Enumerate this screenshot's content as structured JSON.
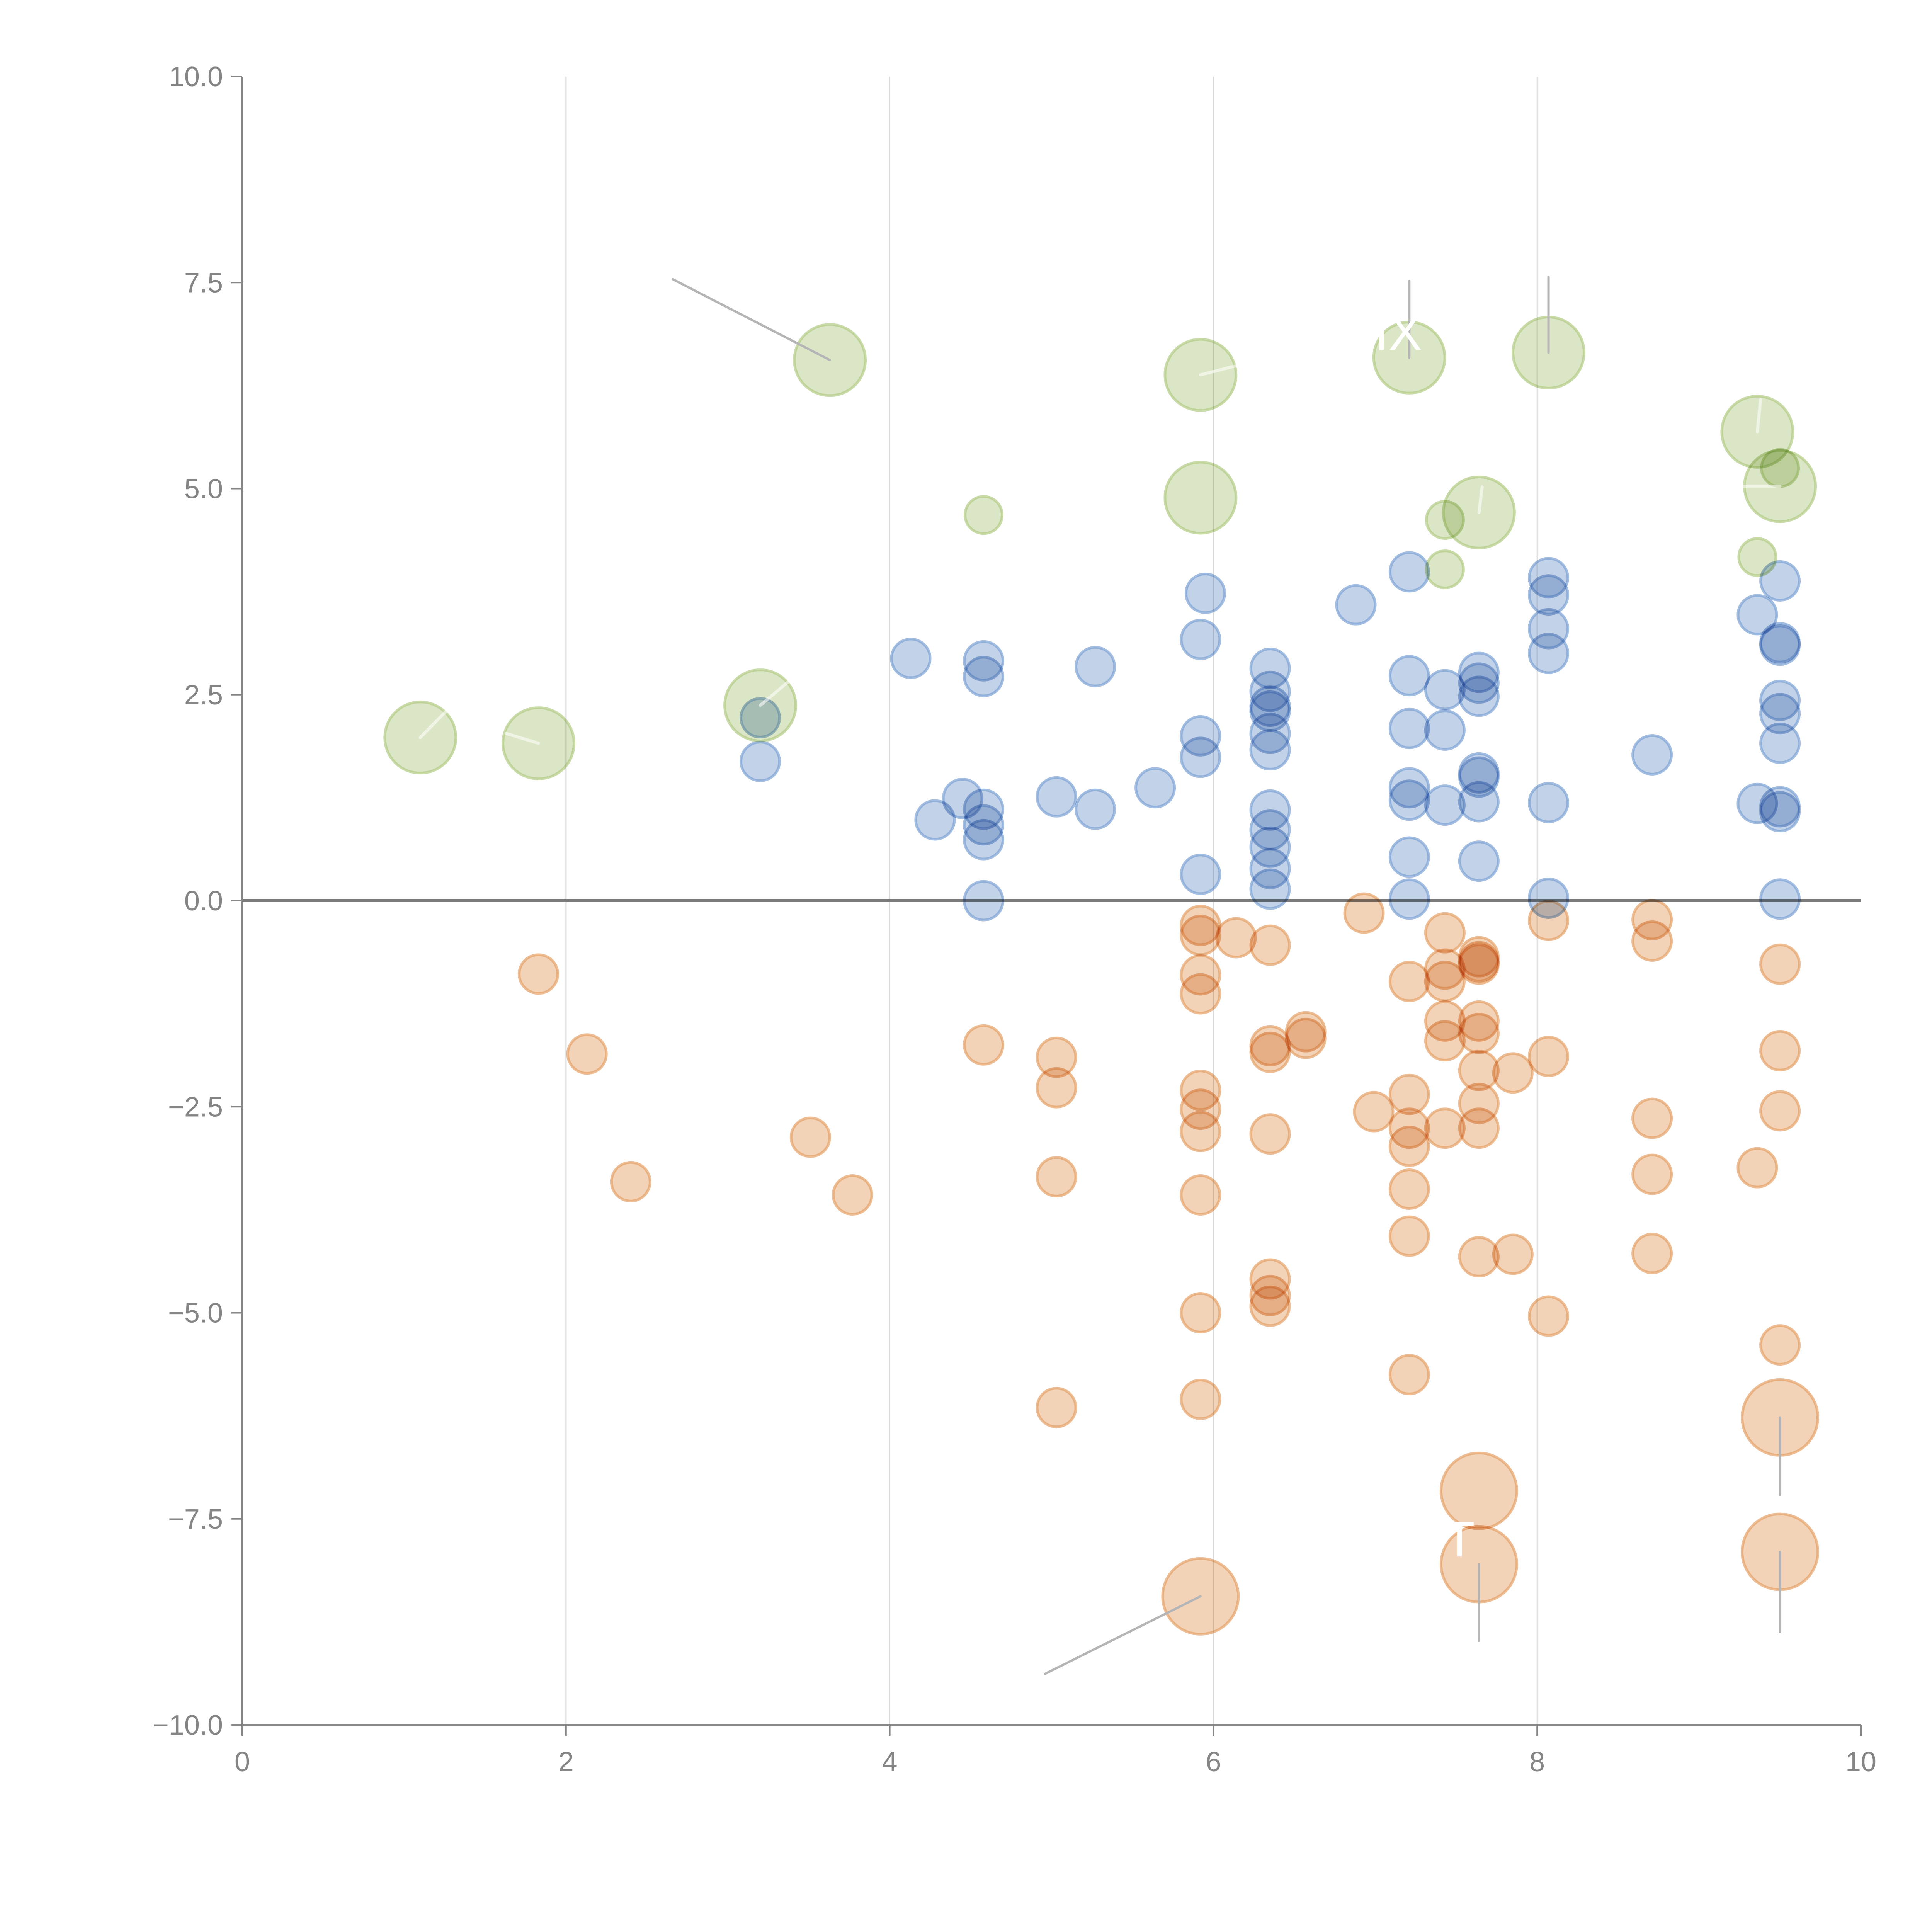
{
  "chart_data": {
    "type": "scatter",
    "title": "",
    "xlabel": "",
    "ylabel": "",
    "xlim": [
      0,
      10
    ],
    "ylim": [
      -10,
      10
    ],
    "grid": "vertical-lines-at-x-ticks",
    "legend": "none",
    "x_ticks": [
      "0",
      "2",
      "4",
      "6",
      "8",
      "10"
    ],
    "x_tick_values": [
      0,
      2,
      4,
      6,
      8,
      10
    ],
    "y_ticks": [
      "−10.0",
      "−7.5",
      "−5.0",
      "−2.5",
      "0.0",
      "2.5",
      "5.0",
      "7.5",
      "10.0"
    ],
    "y_tick_values": [
      -10,
      -7.5,
      -5,
      -2.5,
      0,
      2.5,
      5,
      7.5,
      10
    ],
    "reference_line_y": 0,
    "series": [
      {
        "name": "green",
        "color_fill": "#d5e2bc",
        "color_stroke": "#b3cc86",
        "points": [
          {
            "x": 1.1,
            "y": 1.98,
            "size": "large"
          },
          {
            "x": 1.83,
            "y": 1.91,
            "size": "large"
          },
          {
            "x": 3.2,
            "y": 2.37,
            "size": "large"
          },
          {
            "x": 3.63,
            "y": 6.56,
            "size": "large"
          },
          {
            "x": 5.92,
            "y": 6.38,
            "size": "large"
          },
          {
            "x": 5.92,
            "y": 4.89,
            "size": "large"
          },
          {
            "x": 4.58,
            "y": 4.68,
            "size": "small"
          },
          {
            "x": 7.21,
            "y": 6.59,
            "size": "large"
          },
          {
            "x": 8.07,
            "y": 6.65,
            "size": "large"
          },
          {
            "x": 7.64,
            "y": 4.71,
            "size": "large"
          },
          {
            "x": 7.43,
            "y": 4.62,
            "size": "small"
          },
          {
            "x": 7.43,
            "y": 4.02,
            "size": "small"
          },
          {
            "x": 9.36,
            "y": 5.69,
            "size": "large"
          },
          {
            "x": 9.5,
            "y": 5.03,
            "size": "large"
          },
          {
            "x": 9.5,
            "y": 5.25,
            "size": "small"
          },
          {
            "x": 9.36,
            "y": 4.17,
            "size": "small"
          }
        ]
      },
      {
        "name": "blue",
        "color_fill": "#b7cae4",
        "color_stroke": "#7ea2d4",
        "points": [
          {
            "x": 3.2,
            "y": 2.22
          },
          {
            "x": 3.2,
            "y": 1.69
          },
          {
            "x": 4.13,
            "y": 2.94
          },
          {
            "x": 4.28,
            "y": 0.98
          },
          {
            "x": 4.45,
            "y": 1.24
          },
          {
            "x": 4.58,
            "y": 2.91
          },
          {
            "x": 4.58,
            "y": 2.72
          },
          {
            "x": 4.58,
            "y": 1.11
          },
          {
            "x": 4.58,
            "y": 0.92
          },
          {
            "x": 4.58,
            "y": 0.74
          },
          {
            "x": 4.58,
            "y": 0.0
          },
          {
            "x": 5.03,
            "y": 1.26
          },
          {
            "x": 5.27,
            "y": 1.11
          },
          {
            "x": 5.27,
            "y": 2.84
          },
          {
            "x": 5.64,
            "y": 1.37
          },
          {
            "x": 5.92,
            "y": 3.17
          },
          {
            "x": 5.95,
            "y": 3.73
          },
          {
            "x": 5.92,
            "y": 2.0
          },
          {
            "x": 5.92,
            "y": 1.74
          },
          {
            "x": 5.92,
            "y": 0.32
          },
          {
            "x": 6.35,
            "y": 2.82
          },
          {
            "x": 6.35,
            "y": 2.54
          },
          {
            "x": 6.35,
            "y": 2.36
          },
          {
            "x": 6.35,
            "y": 2.3
          },
          {
            "x": 6.35,
            "y": 2.03
          },
          {
            "x": 6.35,
            "y": 1.83
          },
          {
            "x": 6.35,
            "y": 1.1
          },
          {
            "x": 6.35,
            "y": 0.86
          },
          {
            "x": 6.35,
            "y": 0.65
          },
          {
            "x": 6.35,
            "y": 0.39
          },
          {
            "x": 6.35,
            "y": 0.14
          },
          {
            "x": 6.88,
            "y": 3.59
          },
          {
            "x": 7.21,
            "y": 3.99
          },
          {
            "x": 7.21,
            "y": 2.73
          },
          {
            "x": 7.21,
            "y": 2.09
          },
          {
            "x": 7.21,
            "y": 1.37
          },
          {
            "x": 7.21,
            "y": 1.22
          },
          {
            "x": 7.21,
            "y": 0.53
          },
          {
            "x": 7.21,
            "y": 0.02
          },
          {
            "x": 7.43,
            "y": 2.56
          },
          {
            "x": 7.43,
            "y": 2.07
          },
          {
            "x": 7.43,
            "y": 1.16
          },
          {
            "x": 7.64,
            "y": 2.77
          },
          {
            "x": 7.64,
            "y": 2.64
          },
          {
            "x": 7.64,
            "y": 2.48
          },
          {
            "x": 7.64,
            "y": 1.55
          },
          {
            "x": 7.64,
            "y": 1.5
          },
          {
            "x": 7.64,
            "y": 1.2
          },
          {
            "x": 7.64,
            "y": 0.48
          },
          {
            "x": 8.07,
            "y": 3.92
          },
          {
            "x": 8.07,
            "y": 3.71
          },
          {
            "x": 8.07,
            "y": 3.3
          },
          {
            "x": 8.07,
            "y": 3.0
          },
          {
            "x": 8.07,
            "y": 1.19
          },
          {
            "x": 8.07,
            "y": 0.03
          },
          {
            "x": 8.71,
            "y": 1.77
          },
          {
            "x": 9.36,
            "y": 3.47
          },
          {
            "x": 9.36,
            "y": 1.18
          },
          {
            "x": 9.5,
            "y": 3.88
          },
          {
            "x": 9.5,
            "y": 3.13
          },
          {
            "x": 9.5,
            "y": 3.1
          },
          {
            "x": 9.5,
            "y": 2.43
          },
          {
            "x": 9.5,
            "y": 2.27
          },
          {
            "x": 9.5,
            "y": 1.91
          },
          {
            "x": 9.5,
            "y": 1.14
          },
          {
            "x": 9.5,
            "y": 1.08
          },
          {
            "x": 9.5,
            "y": 0.02
          }
        ]
      },
      {
        "name": "orange",
        "color_fill": "#f0cbab",
        "color_stroke": "#e5a168",
        "points": [
          {
            "x": 1.83,
            "y": -0.89
          },
          {
            "x": 2.13,
            "y": -1.86
          },
          {
            "x": 2.4,
            "y": -3.41
          },
          {
            "x": 3.51,
            "y": -2.87
          },
          {
            "x": 3.77,
            "y": -3.57
          },
          {
            "x": 4.58,
            "y": -1.75
          },
          {
            "x": 5.03,
            "y": -1.9
          },
          {
            "x": 5.03,
            "y": -2.27
          },
          {
            "x": 5.03,
            "y": -3.35
          },
          {
            "x": 5.03,
            "y": -6.15
          },
          {
            "x": 5.92,
            "y": -0.3
          },
          {
            "x": 5.92,
            "y": -0.42
          },
          {
            "x": 5.92,
            "y": -0.9
          },
          {
            "x": 5.92,
            "y": -1.13
          },
          {
            "x": 5.92,
            "y": -2.3
          },
          {
            "x": 5.92,
            "y": -2.53
          },
          {
            "x": 5.92,
            "y": -2.8
          },
          {
            "x": 5.92,
            "y": -3.57
          },
          {
            "x": 5.92,
            "y": -5.0
          },
          {
            "x": 5.92,
            "y": -6.05
          },
          {
            "x": 6.14,
            "y": -0.45
          },
          {
            "x": 6.35,
            "y": -0.54
          },
          {
            "x": 6.35,
            "y": -1.76
          },
          {
            "x": 6.35,
            "y": -1.84
          },
          {
            "x": 6.35,
            "y": -2.83
          },
          {
            "x": 6.35,
            "y": -4.59
          },
          {
            "x": 6.35,
            "y": -4.79
          },
          {
            "x": 6.35,
            "y": -4.92
          },
          {
            "x": 6.57,
            "y": -1.59
          },
          {
            "x": 6.57,
            "y": -1.67
          },
          {
            "x": 6.93,
            "y": -0.15
          },
          {
            "x": 6.99,
            "y": -2.56
          },
          {
            "x": 7.21,
            "y": -0.98
          },
          {
            "x": 7.21,
            "y": -2.35
          },
          {
            "x": 7.21,
            "y": -2.76
          },
          {
            "x": 7.21,
            "y": -2.98
          },
          {
            "x": 7.21,
            "y": -3.5
          },
          {
            "x": 7.21,
            "y": -4.07
          },
          {
            "x": 7.21,
            "y": -5.75
          },
          {
            "x": 7.43,
            "y": -0.39
          },
          {
            "x": 7.43,
            "y": -0.83
          },
          {
            "x": 7.43,
            "y": -0.98
          },
          {
            "x": 7.43,
            "y": -1.46
          },
          {
            "x": 7.43,
            "y": -1.7
          },
          {
            "x": 7.43,
            "y": -2.76
          },
          {
            "x": 7.64,
            "y": -0.68
          },
          {
            "x": 7.64,
            "y": -0.74
          },
          {
            "x": 7.64,
            "y": -0.77
          },
          {
            "x": 7.64,
            "y": -1.46
          },
          {
            "x": 7.64,
            "y": -1.61
          },
          {
            "x": 7.64,
            "y": -2.06
          },
          {
            "x": 7.64,
            "y": -2.46
          },
          {
            "x": 7.64,
            "y": -2.76
          },
          {
            "x": 7.64,
            "y": -4.32
          },
          {
            "x": 7.85,
            "y": -2.09
          },
          {
            "x": 7.85,
            "y": -4.29
          },
          {
            "x": 8.07,
            "y": -0.24
          },
          {
            "x": 8.07,
            "y": -1.89
          },
          {
            "x": 8.07,
            "y": -5.04
          },
          {
            "x": 8.71,
            "y": -0.23
          },
          {
            "x": 8.71,
            "y": -0.49
          },
          {
            "x": 8.71,
            "y": -2.64
          },
          {
            "x": 8.71,
            "y": -3.32
          },
          {
            "x": 8.71,
            "y": -4.28
          },
          {
            "x": 9.36,
            "y": -3.24
          },
          {
            "x": 9.5,
            "y": -0.77
          },
          {
            "x": 9.5,
            "y": -1.82
          },
          {
            "x": 9.5,
            "y": -2.55
          },
          {
            "x": 9.5,
            "y": -5.39
          },
          {
            "x": 5.92,
            "y": -8.44,
            "size": "large"
          },
          {
            "x": 7.64,
            "y": -7.16,
            "size": "large"
          },
          {
            "x": 7.64,
            "y": -8.05,
            "size": "large"
          },
          {
            "x": 9.5,
            "y": -6.27,
            "size": "large"
          },
          {
            "x": 9.5,
            "y": -7.9,
            "size": "large"
          }
        ]
      }
    ],
    "annotations": [
      {
        "x": 3.63,
        "y": 6.56,
        "text": "",
        "leader_to": [
          2.66,
          7.54
        ]
      },
      {
        "x": 7.21,
        "y": 6.59,
        "text": "IX",
        "leader_to": [
          7.21,
          7.52
        ]
      },
      {
        "x": 8.07,
        "y": 6.65,
        "text": "",
        "leader_to": [
          8.07,
          7.57
        ]
      },
      {
        "x": 7.21,
        "y": 1.9,
        "text": " ",
        "leader_to": null
      },
      {
        "x": 7.64,
        "y": -8.05,
        "text": "T",
        "leader_to": [
          7.64,
          -8.98
        ]
      },
      {
        "x": 5.92,
        "y": -8.44,
        "text": "",
        "leader_to": [
          4.96,
          -9.38
        ]
      },
      {
        "x": 9.5,
        "y": -6.27,
        "text": "",
        "leader_to": [
          9.5,
          -7.21
        ]
      },
      {
        "x": 9.5,
        "y": -7.9,
        "text": "",
        "leader_to": [
          9.5,
          -8.87
        ]
      }
    ]
  }
}
